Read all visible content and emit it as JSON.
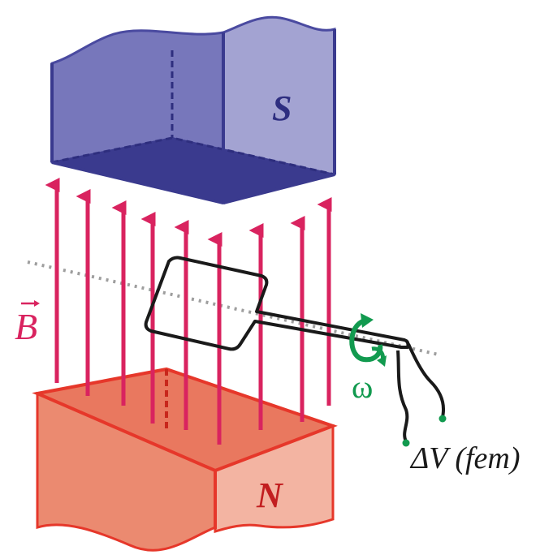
{
  "magnets": {
    "south_label": "S",
    "north_label": "N"
  },
  "field": {
    "vector_label": "B",
    "arrow_count": 9
  },
  "rotation": {
    "symbol": "ω"
  },
  "terminals": {
    "emf_label": "ΔV (fem)"
  },
  "colors": {
    "south_magnet": "#6f6fb4",
    "north_magnet": "#e9785f",
    "field_lines": "#d9235f",
    "rotation": "#129a4f",
    "wire": "#1a1a1a",
    "axis": "#9e9e9e"
  }
}
